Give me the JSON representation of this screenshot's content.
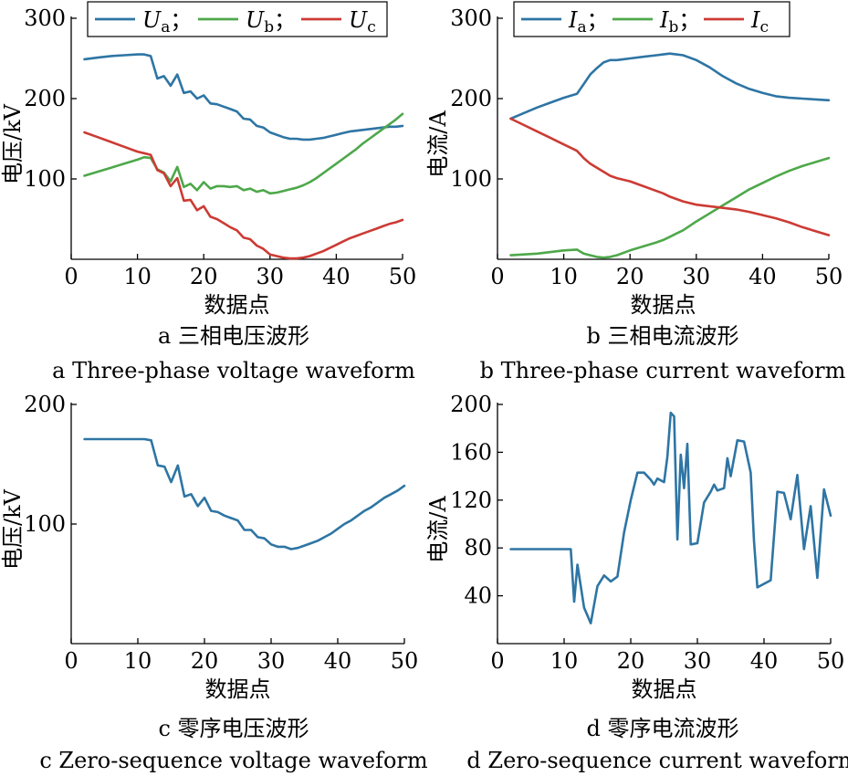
{
  "charts": [
    {
      "type": "line",
      "id": "a",
      "xlabel": "数据点",
      "ylabel": "电压/kV",
      "xlim": [
        0,
        50
      ],
      "ylim": [
        0,
        300
      ],
      "xticks": [
        0,
        10,
        20,
        30,
        40,
        50
      ],
      "yticks": [
        100,
        200,
        300
      ],
      "caption_cn": "a 三相电压波形",
      "caption_en": "a Three-phase voltage waveform",
      "legend": {
        "placement": "top"
      },
      "x": [
        2,
        4,
        6,
        8,
        10,
        11,
        12,
        13,
        14,
        15,
        16,
        17,
        18,
        19,
        20,
        21,
        22,
        23,
        24,
        25,
        26,
        27,
        28,
        29,
        30,
        31,
        32,
        33,
        34,
        35,
        36,
        37,
        38,
        39,
        40,
        41,
        42,
        43,
        44,
        45,
        46,
        47,
        48,
        49,
        50
      ],
      "series": [
        {
          "name": "U",
          "sub": "a",
          "color": "#2e75a4",
          "values": [
            249,
            251,
            253,
            254,
            255,
            255,
            253,
            225,
            228,
            216,
            230,
            207,
            209,
            200,
            204,
            194,
            193,
            190,
            187,
            184,
            175,
            174,
            166,
            164,
            158,
            155,
            152,
            150,
            150,
            149,
            149,
            150,
            151,
            153,
            155,
            157,
            159,
            160,
            161,
            162,
            163,
            164,
            165,
            165,
            166
          ]
        },
        {
          "name": "U",
          "sub": "b",
          "color": "#4ea84a",
          "values": [
            104,
            109,
            114,
            119,
            124,
            127,
            126,
            112,
            108,
            97,
            115,
            90,
            94,
            86,
            96,
            88,
            91,
            91,
            90,
            91,
            86,
            88,
            84,
            86,
            82,
            83,
            85,
            87,
            89,
            92,
            96,
            101,
            107,
            113,
            119,
            125,
            131,
            137,
            144,
            150,
            156,
            162,
            168,
            174,
            181
          ]
        },
        {
          "name": "U",
          "sub": "c",
          "color": "#cc3b34",
          "values": [
            158,
            152,
            146,
            140,
            134,
            132,
            130,
            111,
            107,
            91,
            101,
            73,
            74,
            61,
            66,
            53,
            50,
            45,
            40,
            36,
            27,
            25,
            17,
            13,
            6,
            4,
            2,
            1,
            1,
            2,
            4,
            7,
            10,
            14,
            18,
            22,
            26,
            29,
            32,
            35,
            38,
            41,
            44,
            46,
            49
          ]
        }
      ]
    },
    {
      "type": "line",
      "id": "b",
      "xlabel": "数据点",
      "ylabel": "电流/A",
      "xlim": [
        0,
        50
      ],
      "ylim": [
        0,
        300
      ],
      "xticks": [
        0,
        10,
        20,
        30,
        40,
        50
      ],
      "yticks": [
        100,
        200,
        300
      ],
      "caption_cn": "b 三相电流波形",
      "caption_en": "b Three-phase current waveform",
      "legend": {
        "placement": "top"
      },
      "x": [
        2,
        4,
        6,
        8,
        10,
        12,
        13,
        14,
        15,
        16,
        17,
        18,
        19,
        20,
        22,
        24,
        25,
        26,
        27,
        28,
        30,
        32,
        34,
        36,
        38,
        40,
        42,
        44,
        46,
        48,
        50
      ],
      "series": [
        {
          "name": "I",
          "sub": "a",
          "color": "#2e75a4",
          "values": [
            175,
            182,
            189,
            195,
            201,
            206,
            218,
            230,
            238,
            245,
            248,
            248,
            249,
            250,
            252,
            254,
            255,
            256,
            255,
            254,
            248,
            239,
            228,
            219,
            212,
            207,
            203,
            201,
            200,
            199,
            198
          ]
        },
        {
          "name": "I",
          "sub": "b",
          "color": "#4ea84a",
          "values": [
            5,
            6,
            7,
            9,
            11,
            12,
            7,
            5,
            3,
            2,
            3,
            5,
            8,
            11,
            16,
            21,
            24,
            28,
            32,
            36,
            47,
            57,
            67,
            77,
            87,
            95,
            103,
            110,
            116,
            121,
            126
          ]
        },
        {
          "name": "I",
          "sub": "c",
          "color": "#cc3b34",
          "values": [
            175,
            167,
            159,
            151,
            143,
            135,
            126,
            119,
            114,
            109,
            104,
            101,
            99,
            97,
            91,
            85,
            82,
            78,
            75,
            72,
            68,
            66,
            64,
            62,
            59,
            55,
            51,
            46,
            40,
            35,
            30
          ]
        }
      ]
    },
    {
      "type": "line",
      "id": "c",
      "xlabel": "数据点",
      "ylabel": "电压/kV",
      "xlim": [
        0,
        50
      ],
      "ylim": [
        0,
        200
      ],
      "xticks": [
        0,
        10,
        20,
        30,
        40,
        50
      ],
      "yticks": [
        100,
        200
      ],
      "caption_cn": "c 零序电压波形",
      "caption_en": "c Zero-sequence voltage waveform",
      "x": [
        2,
        4,
        6,
        8,
        10,
        11,
        12,
        13,
        14,
        15,
        16,
        17,
        18,
        19,
        20,
        21,
        22,
        23,
        24,
        25,
        26,
        27,
        28,
        29,
        30,
        31,
        32,
        33,
        34,
        35,
        36,
        37,
        38,
        39,
        40,
        41,
        42,
        43,
        44,
        45,
        46,
        47,
        48,
        49,
        50
      ],
      "series": [
        {
          "name": "",
          "color": "#2e75a4",
          "values": [
            171,
            171,
            171,
            171,
            171,
            171,
            170,
            149,
            148,
            135,
            149,
            123,
            125,
            115,
            122,
            111,
            110,
            107,
            105,
            103,
            95,
            95,
            89,
            88,
            83,
            81,
            81,
            79,
            80,
            82,
            84,
            86,
            89,
            92,
            96,
            100,
            103,
            107,
            111,
            114,
            118,
            122,
            125,
            128,
            132
          ]
        }
      ]
    },
    {
      "type": "line",
      "id": "d",
      "xlabel": "数据点",
      "ylabel": "电流/A",
      "xlim": [
        0,
        50
      ],
      "ylim": [
        0,
        200
      ],
      "xticks": [
        0,
        10,
        20,
        30,
        40,
        50
      ],
      "yticks": [
        40,
        80,
        120,
        160,
        200
      ],
      "caption_cn": "d 零序电流波形",
      "caption_en": "d Zero-sequence current waveform",
      "x": [
        2,
        6,
        10,
        11,
        11.5,
        12,
        13,
        14,
        15,
        16,
        17,
        18,
        19,
        20,
        21,
        22,
        23,
        23.5,
        24,
        25,
        25.5,
        26,
        26.5,
        27,
        27.5,
        28,
        28.5,
        29,
        30,
        31,
        32,
        32.5,
        33,
        34,
        34.5,
        35,
        36,
        37,
        38,
        38.5,
        39,
        41,
        42,
        43,
        44,
        45,
        46,
        47,
        48,
        49,
        50
      ],
      "series": [
        {
          "name": "",
          "color": "#2e75a4",
          "values": [
            79,
            79,
            79,
            79,
            35,
            66,
            30,
            17,
            48,
            57,
            52,
            56,
            93,
            120,
            143,
            143,
            137,
            133,
            138,
            135,
            156,
            193,
            190,
            87,
            158,
            130,
            167,
            83,
            84,
            118,
            127,
            133,
            128,
            130,
            155,
            140,
            170,
            169,
            143,
            86,
            47,
            53,
            127,
            126,
            104,
            141,
            79,
            115,
            55,
            129,
            107
          ]
        }
      ]
    }
  ]
}
